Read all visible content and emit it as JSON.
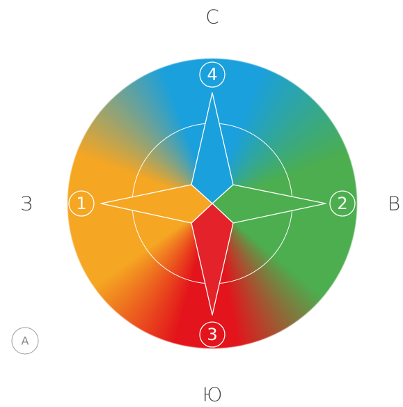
{
  "directions": {
    "north": "С",
    "east": "В",
    "south": "Ю",
    "west": "З"
  },
  "markers": {
    "west": "1",
    "east": "2",
    "south": "3",
    "north": "4"
  },
  "badge": "А"
}
